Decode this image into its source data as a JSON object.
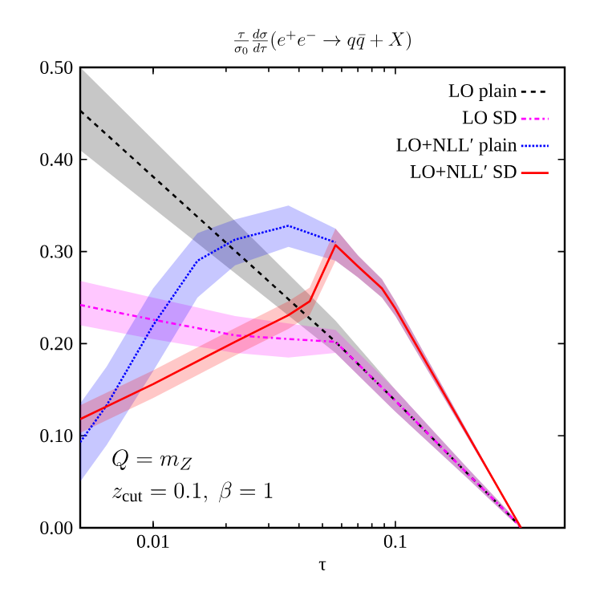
{
  "chart_data": {
    "type": "line",
    "title": "\\frac{\\tau}{\\sigma_0}\\frac{d\\sigma}{d\\tau}(e^+e^-\\to q\\bar{q}+X)",
    "xlabel": "τ",
    "log": "x",
    "legend": "top right",
    "xlim": [
      0.005,
      0.5
    ],
    "ylim": [
      0,
      0.5
    ],
    "xticks": [
      {
        "value": 0.01,
        "label": "0.01"
      },
      {
        "value": 0.1,
        "label": "0.1"
      }
    ],
    "yticks": [
      {
        "value": 0,
        "label": "0.00"
      },
      {
        "value": 0.1,
        "label": "0.10"
      },
      {
        "value": 0.2,
        "label": "0.20"
      },
      {
        "value": 0.3,
        "label": "0.30"
      },
      {
        "value": 0.4,
        "label": "0.40"
      },
      {
        "value": 0.5,
        "label": "0.50"
      }
    ],
    "annotations": [
      "Q = m_Z",
      "z_{\\mathrm{cut}} = 0.1,\\ \\beta = 1"
    ],
    "series": [
      {
        "name": "LO plain",
        "color": "#000000",
        "line_style": "dashed",
        "x": [
          0.005,
          0.0566,
          0.1,
          0.2,
          0.3,
          0.33
        ],
        "values": [
          0.453,
          0.202,
          0.138,
          0.058,
          0.012,
          0
        ],
        "lower": [
          0.41,
          0.19,
          0.126,
          0.053,
          0.009,
          0
        ],
        "upper": [
          0.5,
          0.225,
          0.15,
          0.064,
          0.015,
          0
        ]
      },
      {
        "name": "LO SD",
        "color": "#ff00ff",
        "line_style": "dashdot",
        "x": [
          0.005,
          0.01,
          0.0218,
          0.0362,
          0.0566,
          0.1,
          0.2,
          0.3,
          0.33
        ],
        "values": [
          0.242,
          0.226,
          0.209,
          0.205,
          0.202,
          0.138,
          0.058,
          0.012,
          0
        ],
        "lower": [
          0.22,
          0.205,
          0.19,
          0.185,
          0.19,
          0.126,
          0.053,
          0.009,
          0
        ],
        "upper": [
          0.268,
          0.25,
          0.23,
          0.222,
          0.215,
          0.15,
          0.064,
          0.015,
          0
        ]
      },
      {
        "name": "LO+NLL′ plain",
        "color": "#0000ff",
        "line_style": "dotted",
        "x": [
          0.005,
          0.00643,
          0.01,
          0.01524,
          0.0218,
          0.0362,
          0.0566,
          0.07,
          0.088,
          0.1,
          0.33
        ],
        "values": [
          0.093,
          0.133,
          0.22,
          0.29,
          0.313,
          0.328,
          0.31,
          null,
          null,
          null,
          null
        ],
        "lower": [
          0.05,
          0.09,
          0.17,
          0.25,
          0.285,
          0.305,
          0.29,
          0.272,
          0.25,
          0.23,
          0
        ],
        "upper": [
          0.135,
          0.175,
          0.26,
          0.32,
          0.335,
          0.35,
          0.325,
          0.296,
          0.27,
          0.246,
          0
        ]
      },
      {
        "name": "LO+NLL′ SD",
        "color": "#ff0000",
        "line_style": "solid",
        "x": [
          0.005,
          0.01,
          0.0218,
          0.0362,
          0.0443,
          0.0566,
          0.07,
          0.088,
          0.1,
          0.33
        ],
        "values": [
          0.118,
          0.156,
          0.202,
          0.231,
          0.246,
          0.307,
          0.284,
          0.26,
          0.238,
          0
        ],
        "lower": [
          0.103,
          0.141,
          0.187,
          0.216,
          0.231,
          0.29,
          0.272,
          0.25,
          0.23,
          0
        ],
        "upper": [
          0.133,
          0.171,
          0.217,
          0.246,
          0.261,
          0.325,
          0.296,
          0.27,
          0.246,
          0
        ]
      }
    ]
  }
}
